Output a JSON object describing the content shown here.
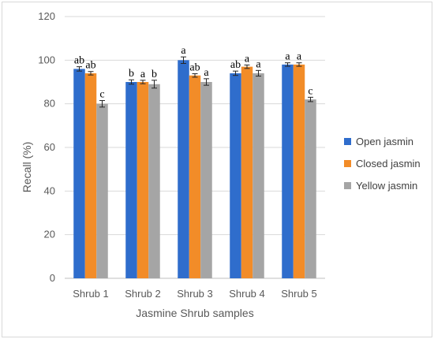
{
  "chart_data": {
    "type": "bar",
    "title": "",
    "xlabel": "Jasmine Shrub samples",
    "ylabel": "Recall (%)",
    "ylim": [
      0,
      120
    ],
    "yticks": [
      0,
      20,
      40,
      60,
      80,
      100,
      120
    ],
    "grid": true,
    "legend_position": "right",
    "categories": [
      "Shrub 1",
      "Shrub 2",
      "Shrub 3",
      "Shrub 4",
      "Shrub 5"
    ],
    "series": [
      {
        "name": "Open jasmin",
        "color": "#2F6DCC",
        "values": [
          96,
          90,
          100,
          94,
          98
        ],
        "errors": [
          1,
          1,
          1.5,
          1,
          0.8
        ],
        "labels": [
          "ab",
          "b",
          "a",
          "ab",
          "a"
        ]
      },
      {
        "name": "Closed jasmin",
        "color": "#F28C28",
        "values": [
          94,
          90,
          93,
          97,
          98
        ],
        "errors": [
          0.8,
          0.8,
          0.8,
          0.8,
          0.8
        ],
        "labels": [
          "ab",
          "a",
          "ab",
          "a",
          "a"
        ]
      },
      {
        "name": "Yellow jasmin",
        "color": "#A5A5A5",
        "values": [
          80,
          89,
          90,
          94,
          82
        ],
        "errors": [
          1.5,
          1.8,
          1.5,
          1.3,
          1.0
        ],
        "labels": [
          "c",
          "b",
          "a",
          "a",
          "c"
        ]
      }
    ]
  }
}
